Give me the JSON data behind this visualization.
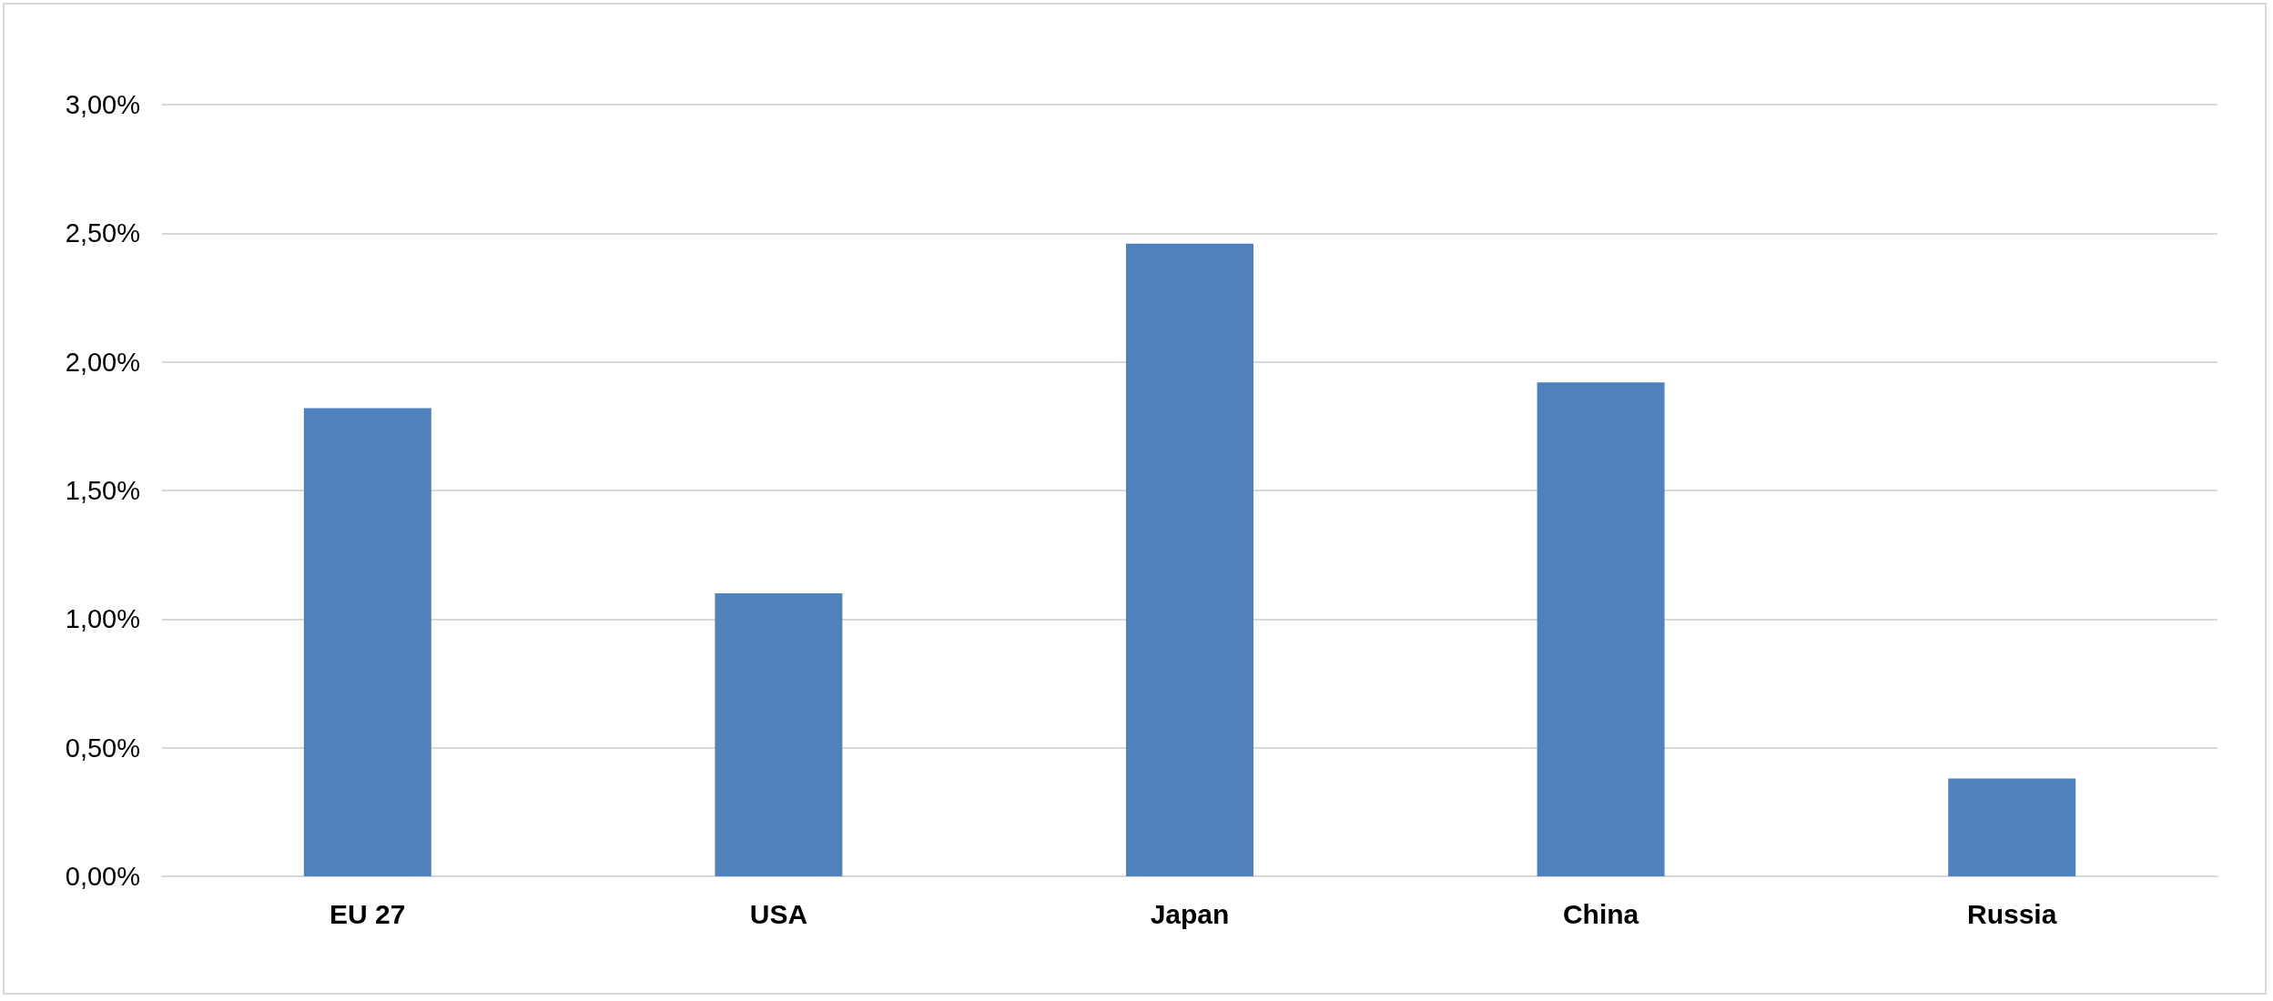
{
  "chart_data": {
    "type": "bar",
    "categories": [
      "EU 27",
      "USA",
      "Japan",
      "China",
      "Russia"
    ],
    "values": [
      1.82,
      1.1,
      2.46,
      1.92,
      0.38
    ],
    "color": "#4f81bd",
    "ylim": [
      0,
      3
    ],
    "yticks": [
      {
        "value": 0,
        "label": "0,00%"
      },
      {
        "value": 0.5,
        "label": "0,50%"
      },
      {
        "value": 1,
        "label": "1,00%"
      },
      {
        "value": 1.5,
        "label": "1,50%"
      },
      {
        "value": 2,
        "label": "2,00%"
      },
      {
        "value": 2.5,
        "label": "2,50%"
      },
      {
        "value": 3,
        "label": "3,00%"
      }
    ],
    "grid": "y"
  }
}
